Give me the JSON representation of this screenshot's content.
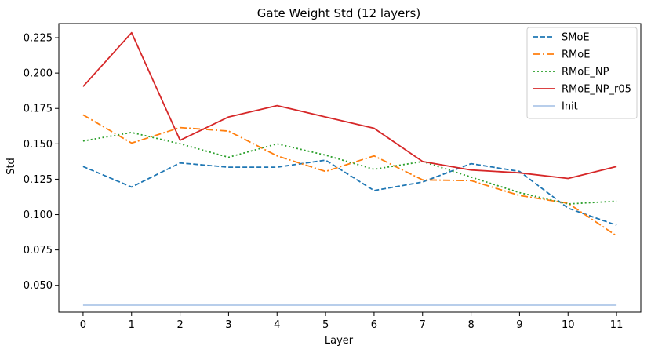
{
  "chart_data": {
    "type": "line",
    "title": "Gate Weight Std (12 layers)",
    "xlabel": "Layer",
    "ylabel": "Std",
    "x": [
      0,
      1,
      2,
      3,
      4,
      5,
      6,
      7,
      8,
      9,
      10,
      11
    ],
    "xticks": [
      "0",
      "1",
      "2",
      "3",
      "4",
      "5",
      "6",
      "7",
      "8",
      "9",
      "10",
      "11"
    ],
    "yticks": [
      "0.050",
      "0.075",
      "0.100",
      "0.125",
      "0.150",
      "0.175",
      "0.200",
      "0.225"
    ],
    "xlim": [
      -0.5,
      11.5
    ],
    "ylim": [
      0.031,
      0.235
    ],
    "grid": false,
    "legend_position": "top-right",
    "series": [
      {
        "name": "SMoE",
        "color": "#1f77b4",
        "style": "dashed",
        "values": [
          0.134,
          0.1195,
          0.1365,
          0.1335,
          0.1335,
          0.1385,
          0.117,
          0.123,
          0.136,
          0.1305,
          0.1045,
          0.0925
        ]
      },
      {
        "name": "RMoE",
        "color": "#ff7f0e",
        "style": "dashdot",
        "values": [
          0.1705,
          0.1505,
          0.1615,
          0.159,
          0.1415,
          0.1305,
          0.1415,
          0.1245,
          0.124,
          0.1135,
          0.108,
          0.085
        ]
      },
      {
        "name": "RMoE_NP",
        "color": "#2ca02c",
        "style": "dotted",
        "values": [
          0.152,
          0.158,
          0.15,
          0.1405,
          0.15,
          0.142,
          0.132,
          0.1375,
          0.1265,
          0.1155,
          0.1075,
          0.1095
        ]
      },
      {
        "name": "RMoE_NP_r05",
        "color": "#d62728",
        "style": "solid",
        "values": [
          0.1905,
          0.2285,
          0.1525,
          0.169,
          0.177,
          0.169,
          0.161,
          0.1375,
          0.1315,
          0.1295,
          0.1255,
          0.134
        ]
      },
      {
        "name": "Init",
        "color": "#aec7e8",
        "style": "solid",
        "values": [
          0.036,
          0.036,
          0.036,
          0.036,
          0.036,
          0.036,
          0.036,
          0.036,
          0.036,
          0.036,
          0.036,
          0.036
        ]
      }
    ]
  }
}
